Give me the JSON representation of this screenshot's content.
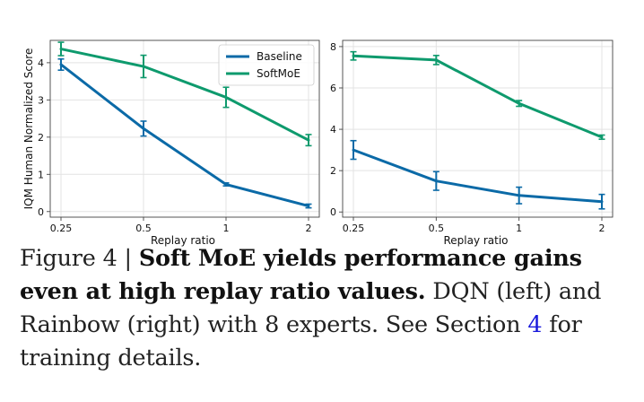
{
  "chart_data": [
    {
      "type": "line",
      "title": "",
      "xlabel": "Replay ratio",
      "ylabel": "IQM Human Normalized Score",
      "categories": [
        "0.25",
        "0.5",
        "1",
        "2"
      ],
      "ylim": [
        -0.15,
        4.6
      ],
      "yticks": [
        0,
        1,
        2,
        3,
        4
      ],
      "grid": true,
      "legend": "top-right",
      "series": [
        {
          "name": "Baseline",
          "color": "#0b6aa7",
          "values": [
            3.95,
            2.23,
            0.73,
            0.15
          ],
          "err": [
            0.15,
            0.2,
            0.04,
            0.05
          ]
        },
        {
          "name": "SoftMoE",
          "color": "#0e9a6d",
          "values": [
            4.37,
            3.9,
            3.07,
            1.92
          ],
          "err": [
            0.18,
            0.3,
            0.27,
            0.15
          ]
        }
      ]
    },
    {
      "type": "line",
      "title": "",
      "xlabel": "Replay ratio",
      "ylabel": "",
      "categories": [
        "0.25",
        "0.5",
        "1",
        "2"
      ],
      "ylim": [
        -0.25,
        8.3
      ],
      "yticks": [
        0,
        2,
        4,
        6,
        8
      ],
      "grid": true,
      "series": [
        {
          "name": "Baseline",
          "color": "#0b6aa7",
          "values": [
            3.0,
            1.5,
            0.8,
            0.5
          ],
          "err": [
            0.45,
            0.45,
            0.4,
            0.35
          ]
        },
        {
          "name": "SoftMoE",
          "color": "#0e9a6d",
          "values": [
            7.55,
            7.35,
            5.25,
            3.62
          ],
          "err": [
            0.2,
            0.22,
            0.14,
            0.1
          ]
        }
      ]
    }
  ],
  "caption": {
    "figure_label": "Figure 4 | ",
    "title": "Soft MoE yields performance gains even at high replay ratio values.",
    "body_1": " DQN (left) and Rainbow (right) with 8 experts. See Section ",
    "section_ref": "4",
    "body_2": " for training details."
  }
}
